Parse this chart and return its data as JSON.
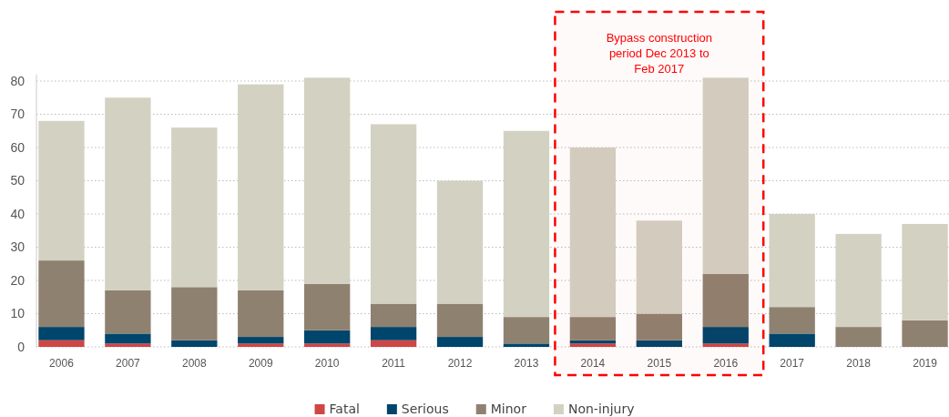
{
  "chart_data": {
    "type": "bar",
    "stacked": true,
    "categories": [
      "2006",
      "2007",
      "2008",
      "2009",
      "2010",
      "2011",
      "2012",
      "2013",
      "2014",
      "2015",
      "2016",
      "2017",
      "2018",
      "2019"
    ],
    "series": [
      {
        "name": "Fatal",
        "color": "#d04545",
        "values": [
          2,
          1,
          0,
          1,
          1,
          2,
          0,
          0,
          1,
          0,
          1,
          0,
          0,
          0
        ]
      },
      {
        "name": "Serious",
        "color": "#00456b",
        "values": [
          4,
          3,
          2,
          2,
          4,
          4,
          3,
          1,
          1,
          2,
          5,
          4,
          0,
          0
        ]
      },
      {
        "name": "Minor",
        "color": "#8f8170",
        "values": [
          20,
          13,
          16,
          14,
          14,
          7,
          10,
          8,
          7,
          8,
          16,
          8,
          6,
          8
        ]
      },
      {
        "name": "Non-injury",
        "color": "#d3d1c2",
        "values": [
          42,
          58,
          48,
          62,
          62,
          54,
          37,
          56,
          51,
          28,
          59,
          28,
          28,
          29
        ]
      }
    ],
    "ylim": [
      0,
      82
    ],
    "yticks": [
      0,
      10,
      20,
      30,
      40,
      50,
      60,
      70,
      80
    ],
    "grid": "y",
    "legend": "bottom",
    "bands": [
      {
        "axis": "x",
        "from": "2014",
        "to": "2016",
        "label": "Bypass construction period Dec 2013 to Feb 2017",
        "color": "#ff0000"
      }
    ]
  }
}
